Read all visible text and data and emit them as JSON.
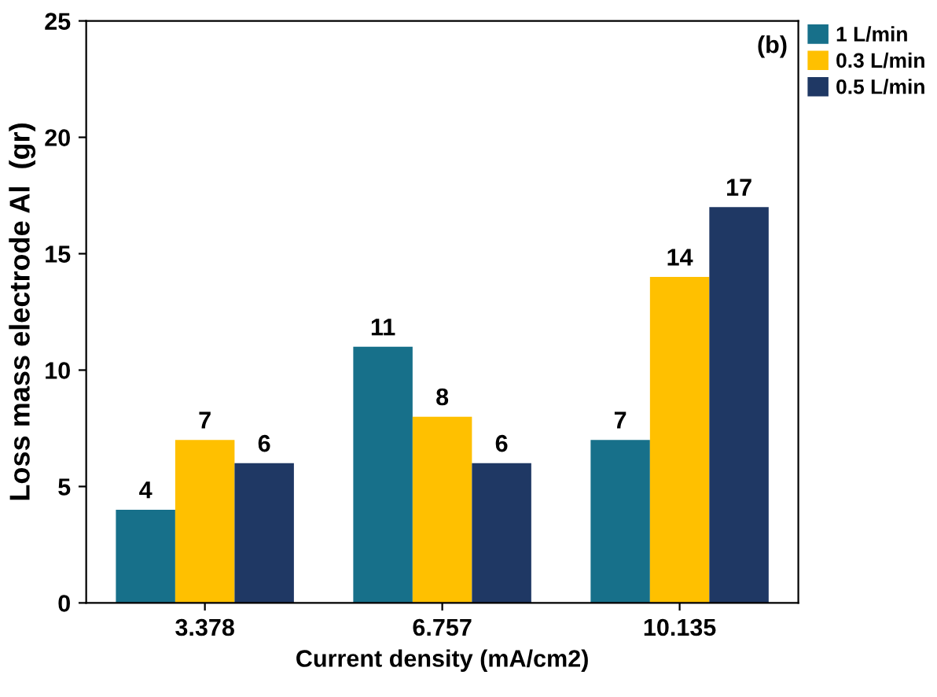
{
  "chart_data": {
    "type": "bar",
    "xlabel": "Current density (mA/cm2)",
    "ylabel": "Loss mass electrode Al  (gr)",
    "categories": [
      "3.378",
      "6.757",
      "10.135"
    ],
    "series": [
      {
        "name": "1 L/min",
        "color": "#17708a",
        "values": [
          4,
          11,
          7
        ]
      },
      {
        "name": "0.3 L/min",
        "color": "#ffc000",
        "values": [
          7,
          8,
          14
        ]
      },
      {
        "name": "0.5 L/min",
        "color": "#1f3864",
        "values": [
          6,
          6,
          17
        ]
      }
    ],
    "ylim": [
      0,
      25
    ],
    "yticks": [
      0,
      5,
      10,
      15,
      20,
      25
    ],
    "grid": false,
    "legend": "top right",
    "data_labels": true,
    "annotations": [
      "(b)"
    ]
  }
}
